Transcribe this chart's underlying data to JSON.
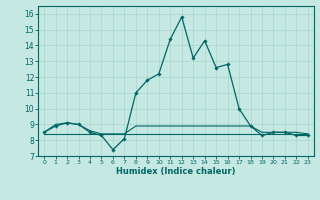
{
  "xlabel": "Humidex (Indice chaleur)",
  "xlim": [
    -0.5,
    23.5
  ],
  "ylim": [
    7,
    16.5
  ],
  "yticks": [
    7,
    8,
    9,
    10,
    11,
    12,
    13,
    14,
    15,
    16
  ],
  "xticks": [
    0,
    1,
    2,
    3,
    4,
    5,
    6,
    7,
    8,
    9,
    10,
    11,
    12,
    13,
    14,
    15,
    16,
    17,
    18,
    19,
    20,
    21,
    22,
    23
  ],
  "bg_color": "#c5e8e2",
  "line_color": "#006666",
  "grid_color": "#a8d5cc",
  "main_y": [
    8.5,
    8.9,
    9.1,
    9.0,
    8.5,
    8.3,
    7.4,
    8.1,
    11.0,
    11.8,
    12.2,
    14.4,
    15.8,
    13.2,
    14.3,
    12.6,
    12.8,
    10.0,
    8.9,
    8.3,
    8.5,
    8.5,
    8.3,
    8.3
  ],
  "min_y": [
    8.4,
    8.4,
    8.4,
    8.4,
    8.4,
    8.4,
    8.4,
    8.4,
    8.4,
    8.4,
    8.4,
    8.4,
    8.4,
    8.4,
    8.4,
    8.4,
    8.4,
    8.4,
    8.4,
    8.4,
    8.4,
    8.4,
    8.4,
    8.4
  ],
  "max_y": [
    8.5,
    9.0,
    9.1,
    9.0,
    8.6,
    8.4,
    8.4,
    8.4,
    8.9,
    8.9,
    8.9,
    8.9,
    8.9,
    8.9,
    8.9,
    8.9,
    8.9,
    8.9,
    8.9,
    8.5,
    8.5,
    8.5,
    8.5,
    8.4
  ]
}
